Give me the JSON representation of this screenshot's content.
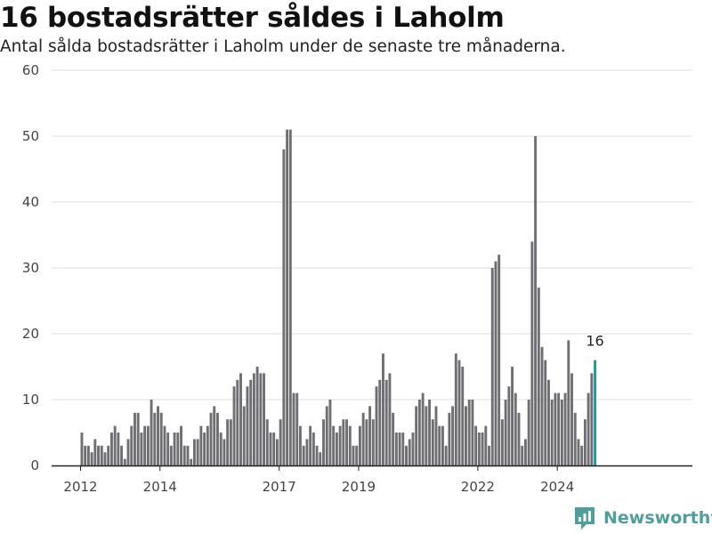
{
  "header": {
    "title": "16 bostadsrätter såldes i Laholm",
    "subtitle": "Antal sålda bostadsrätter i Laholm under de senaste tre månaderna."
  },
  "brand": {
    "name": "Newsworthy",
    "color": "#4f9e9b"
  },
  "colors": {
    "bar": "#6f6e73",
    "highlight": "#1f9b97",
    "axis": "#222222",
    "grid": "#dddddd"
  },
  "chart_data": {
    "type": "bar",
    "title": "16 bostadsrätter såldes i Laholm",
    "subtitle": "Antal sålda bostadsrätter i Laholm under de senaste tre månaderna.",
    "xlabel": "",
    "ylabel": "",
    "ylim": [
      0,
      60
    ],
    "yticks": [
      "0",
      "10",
      "20",
      "30",
      "40",
      "50",
      "60"
    ],
    "xticks": [
      "2012",
      "2014",
      "2017",
      "2019",
      "2022",
      "2024"
    ],
    "grid": true,
    "start_month": "2012-01",
    "frequency": "monthly",
    "values": [
      5,
      3,
      3,
      2,
      4,
      3,
      3,
      2,
      3,
      5,
      6,
      5,
      3,
      1,
      4,
      6,
      8,
      8,
      5,
      6,
      6,
      10,
      8,
      9,
      8,
      6,
      5,
      3,
      5,
      5,
      6,
      3,
      3,
      1,
      4,
      4,
      6,
      5,
      6,
      8,
      9,
      8,
      5,
      4,
      7,
      7,
      12,
      13,
      14,
      9,
      12,
      13,
      14,
      15,
      14,
      14,
      7,
      5,
      5,
      4,
      7,
      48,
      51,
      51,
      11,
      11,
      6,
      3,
      4,
      6,
      5,
      3,
      2,
      7,
      9,
      10,
      6,
      5,
      6,
      7,
      7,
      6,
      3,
      3,
      6,
      8,
      7,
      9,
      7,
      12,
      13,
      17,
      13,
      14,
      8,
      5,
      5,
      5,
      3,
      4,
      5,
      9,
      10,
      11,
      9,
      10,
      7,
      9,
      6,
      6,
      3,
      8,
      9,
      17,
      16,
      15,
      9,
      10,
      10,
      6,
      5,
      5,
      6,
      3,
      30,
      31,
      32,
      7,
      10,
      12,
      15,
      11,
      8,
      3,
      4,
      10,
      34,
      50,
      27,
      18,
      16,
      13,
      10,
      11,
      11,
      10,
      11,
      19,
      14,
      8,
      4,
      3,
      7,
      11,
      14,
      16
    ],
    "highlight_last": true,
    "annotation": "16"
  }
}
